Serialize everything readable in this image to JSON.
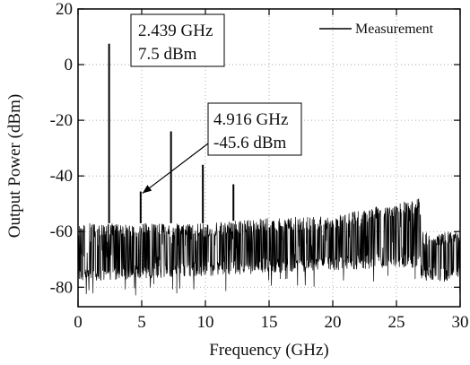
{
  "chart_data": {
    "type": "line",
    "title": "",
    "xlabel": "Frequency (GHz)",
    "ylabel": "Output Power (dBm)",
    "xlim": [
      0,
      30
    ],
    "ylim": [
      -87,
      20
    ],
    "x_ticks": [
      0,
      5,
      10,
      15,
      20,
      25,
      30
    ],
    "y_ticks": [
      20,
      0,
      -20,
      -40,
      -60,
      -80
    ],
    "grid": true,
    "legend_position": "top-right",
    "series": [
      {
        "name": "Measurement",
        "color": "#000000",
        "noise_floor": [
          {
            "x": 0.0,
            "upper": -57,
            "lower": -78
          },
          {
            "x": 5.0,
            "upper": -57,
            "lower": -77
          },
          {
            "x": 10.0,
            "upper": -57,
            "lower": -76
          },
          {
            "x": 15.0,
            "upper": -55,
            "lower": -75
          },
          {
            "x": 20.0,
            "upper": -54,
            "lower": -74
          },
          {
            "x": 24.5,
            "upper": -50,
            "lower": -73
          },
          {
            "x": 26.8,
            "upper": -48,
            "lower": -73
          },
          {
            "x": 27.0,
            "upper": -60,
            "lower": -78
          },
          {
            "x": 30.0,
            "upper": -60,
            "lower": -78
          }
        ],
        "peaks": [
          {
            "x": 2.439,
            "y": 7.5
          },
          {
            "x": 4.916,
            "y": -45.6
          },
          {
            "x": 7.3,
            "y": -24
          },
          {
            "x": 9.8,
            "y": -36
          },
          {
            "x": 12.2,
            "y": -43
          }
        ]
      }
    ],
    "annotations": [
      {
        "line1": "2.439 GHz",
        "line2": "7.5 dBm",
        "x": 2.439,
        "y": 7.5
      },
      {
        "line1": "4.916 GHz",
        "line2": "-45.6 dBm",
        "x": 4.916,
        "y": -45.6
      }
    ]
  }
}
